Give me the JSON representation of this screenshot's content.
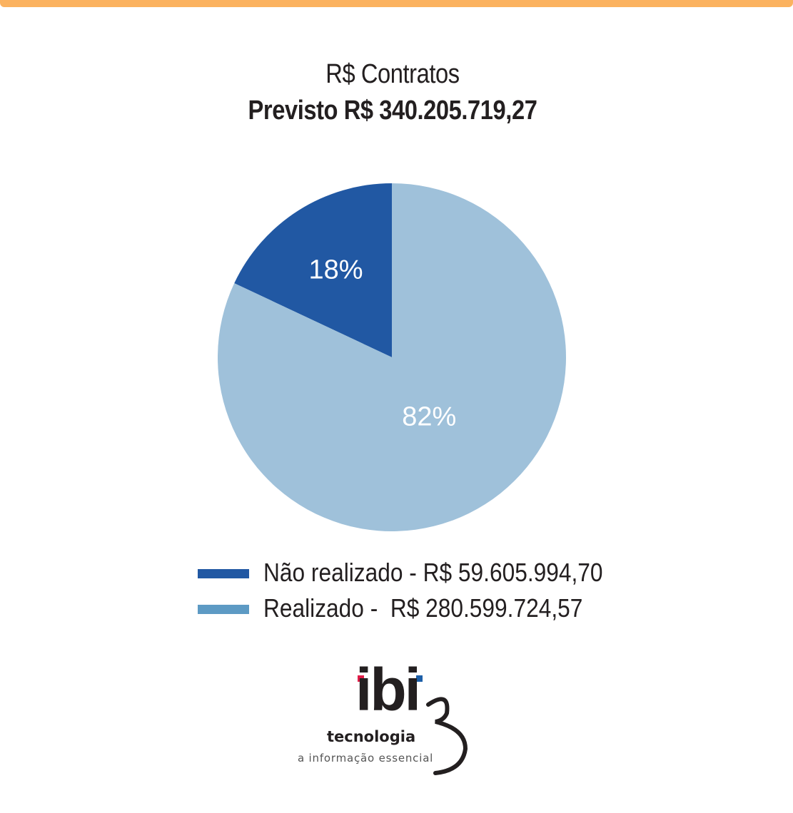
{
  "colors": {
    "accent_bar": "#fbb25f",
    "dark_slice": "#2158a3",
    "light_slice": "#9fc1da",
    "legend_light": "#5d9ac4"
  },
  "header": {
    "title": "R$ Contratos",
    "subtitle": "Previsto R$  340.205.719,27"
  },
  "chart_data": {
    "type": "pie",
    "title": "R$ Contratos",
    "subtitle": "Previsto R$  340.205.719,27",
    "slices": [
      {
        "name": "Não realizado",
        "value": 18,
        "label": "18%",
        "amount": "R$ 59.605.994,70",
        "color": "#2158a3"
      },
      {
        "name": "Realizado",
        "value": 82,
        "label": "82%",
        "amount": "R$ 280.599.724,57",
        "color": "#9fc1da"
      }
    ],
    "legend": {
      "placement": "bottom",
      "entries": [
        {
          "label": "Não realizado - R$ 59.605.994,70",
          "color": "#2158a3"
        },
        {
          "label": "Realizado -  R$ 280.599.724,57",
          "color": "#5d9ac4"
        }
      ]
    }
  },
  "logo": {
    "word": "ibi",
    "subtitle": "tecnologia",
    "tagline": "a informação essencial"
  }
}
